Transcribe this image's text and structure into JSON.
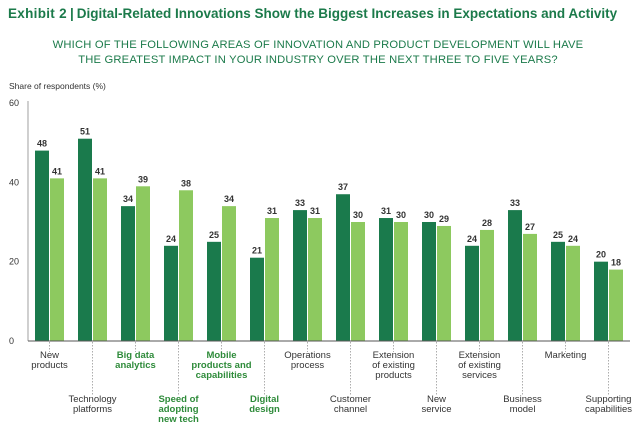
{
  "header": {
    "exhibit": "Exhibit 2",
    "separator": "|",
    "title": "Digital-Related Innovations Show the Biggest Increases in Expectations and Activity",
    "question_lines": [
      "WHICH OF THE FOLLOWING AREAS OF INNOVATION AND PRODUCT DEVELOPMENT WILL HAVE",
      "THE GREATEST IMPACT IN YOUR INDUSTRY OVER THE NEXT THREE TO FIVE YEARS?"
    ]
  },
  "colors": {
    "dark_green": "#1a7a4c",
    "light_green": "#8dc95f",
    "title_green": "#1b7a4a",
    "digital_label_green": "#2e8b3a",
    "text": "#333333"
  },
  "chart_data": {
    "type": "bar",
    "ylabel": "Share of respondents (%)",
    "ylim": [
      0,
      60
    ],
    "yticks": [
      0,
      20,
      40,
      60
    ],
    "grid": false,
    "categories": [
      {
        "lines": [
          "New",
          "products"
        ],
        "row": 1,
        "digital": false
      },
      {
        "lines": [
          "Technology",
          "platforms"
        ],
        "row": 2,
        "digital": false
      },
      {
        "lines": [
          "Big data",
          "analytics"
        ],
        "row": 1,
        "digital": true
      },
      {
        "lines": [
          "Speed of",
          "adopting",
          "new tech"
        ],
        "row": 2,
        "digital": true
      },
      {
        "lines": [
          "Mobile",
          "products and",
          "capabilities"
        ],
        "row": 1,
        "digital": true
      },
      {
        "lines": [
          "Digital",
          "design"
        ],
        "row": 2,
        "digital": true
      },
      {
        "lines": [
          "Operations",
          "process"
        ],
        "row": 1,
        "digital": false
      },
      {
        "lines": [
          "Customer",
          "channel"
        ],
        "row": 2,
        "digital": false
      },
      {
        "lines": [
          "Extension",
          "of existing",
          "products"
        ],
        "row": 1,
        "digital": false
      },
      {
        "lines": [
          "New",
          "service"
        ],
        "row": 2,
        "digital": false
      },
      {
        "lines": [
          "Extension",
          "of existing",
          "services"
        ],
        "row": 1,
        "digital": false
      },
      {
        "lines": [
          "Business",
          "model"
        ],
        "row": 2,
        "digital": false
      },
      {
        "lines": [
          "Marketing"
        ],
        "row": 1,
        "digital": false
      },
      {
        "lines": [
          "Supporting",
          "capabilities"
        ],
        "row": 2,
        "digital": false
      }
    ],
    "series": [
      {
        "name": "series-1",
        "color": "#1a7a4c",
        "values": [
          48,
          51,
          34,
          24,
          25,
          21,
          33,
          37,
          31,
          30,
          24,
          33,
          25,
          20
        ]
      },
      {
        "name": "series-2",
        "color": "#8dc95f",
        "values": [
          41,
          41,
          39,
          38,
          34,
          31,
          31,
          30,
          30,
          29,
          28,
          27,
          24,
          18
        ]
      }
    ]
  }
}
